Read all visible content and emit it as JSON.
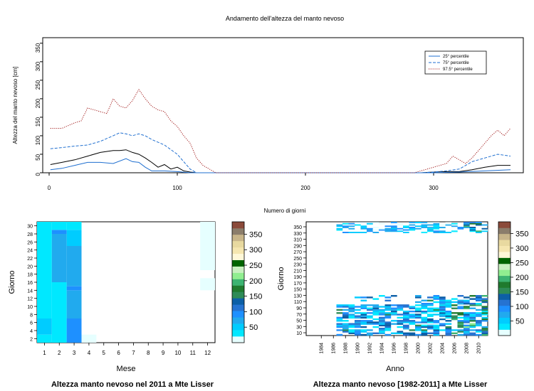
{
  "colors": {
    "median": "#000000",
    "p25": "#1f6fd0",
    "p75": "#1f6fd0",
    "p975": "#a01818",
    "scale": [
      "#e6ffff",
      "#00e8ff",
      "#00ccff",
      "#21aaee",
      "#1e90ff",
      "#2673d1",
      "#0d5fa6",
      "#2e8b57",
      "#1f7a2e",
      "#3cb371",
      "#90ee90",
      "#c8f0c0",
      "#006400",
      "#fff8d8",
      "#f5e6b0",
      "#e8d9a0",
      "#c8b58a",
      "#8b7d6b",
      "#8b4a3a"
    ]
  },
  "chart_data": [
    {
      "type": "line",
      "title": "Andamento dell'altezza del manto nevoso",
      "xlabel": "Numero di giorni",
      "ylabel": "Altezza del manto nevoso [cm]",
      "xlim": [
        -5,
        370
      ],
      "ylim": [
        0,
        365
      ],
      "xticks": [
        0,
        100,
        200,
        300
      ],
      "yticks": [
        0,
        50,
        100,
        150,
        200,
        250,
        300,
        350
      ],
      "legend_position": "top-right",
      "series": [
        {
          "name": "",
          "role": "median",
          "dash": "solid",
          "x": [
            1,
            10,
            20,
            30,
            40,
            50,
            55,
            60,
            65,
            70,
            75,
            80,
            85,
            90,
            95,
            100,
            105,
            110,
            115,
            290,
            300,
            310,
            320,
            330,
            340,
            350,
            360
          ],
          "y": [
            22,
            28,
            35,
            45,
            55,
            60,
            60,
            62,
            55,
            50,
            40,
            28,
            15,
            22,
            10,
            15,
            5,
            2,
            0,
            0,
            2,
            3,
            3,
            8,
            15,
            20,
            20
          ]
        },
        {
          "name": "25° percentile",
          "role": "p25",
          "dash": "solid",
          "x": [
            1,
            10,
            20,
            30,
            40,
            50,
            60,
            65,
            70,
            75,
            80,
            90,
            100,
            110,
            290,
            300,
            320,
            340,
            360
          ],
          "y": [
            8,
            12,
            20,
            28,
            28,
            25,
            38,
            30,
            28,
            15,
            5,
            5,
            3,
            0,
            0,
            0,
            2,
            5,
            8
          ]
        },
        {
          "name": "75° percentile",
          "role": "p75",
          "dash": "dashed",
          "x": [
            1,
            10,
            20,
            30,
            40,
            50,
            55,
            60,
            65,
            70,
            75,
            80,
            90,
            100,
            105,
            110,
            115,
            290,
            300,
            310,
            320,
            330,
            340,
            350,
            360
          ],
          "y": [
            65,
            68,
            72,
            75,
            85,
            100,
            108,
            105,
            100,
            105,
            100,
            90,
            75,
            50,
            30,
            10,
            0,
            0,
            2,
            5,
            10,
            30,
            40,
            50,
            45
          ]
        },
        {
          "name": "97.5° percentile",
          "role": "p975",
          "dash": "dotted",
          "x": [
            1,
            10,
            20,
            25,
            30,
            35,
            40,
            45,
            50,
            55,
            60,
            65,
            70,
            75,
            80,
            85,
            90,
            95,
            100,
            105,
            110,
            115,
            120,
            125,
            130,
            285,
            290,
            300,
            310,
            315,
            320,
            325,
            330,
            335,
            340,
            345,
            350,
            355,
            360
          ],
          "y": [
            120,
            120,
            135,
            140,
            175,
            170,
            165,
            160,
            200,
            180,
            175,
            195,
            225,
            200,
            180,
            170,
            165,
            140,
            125,
            100,
            80,
            40,
            20,
            10,
            0,
            0,
            5,
            15,
            25,
            45,
            35,
            25,
            40,
            60,
            80,
            100,
            115,
            100,
            120
          ]
        }
      ]
    },
    {
      "type": "heatmap",
      "title": "Altezza manto nevoso nel 2011 a Mte Lisser",
      "xlabel": "Mese",
      "ylabel": "Giorno",
      "xticks": [
        1,
        2,
        3,
        4,
        5,
        6,
        7,
        8,
        9,
        10,
        11,
        12
      ],
      "yticks": [
        2,
        4,
        6,
        8,
        10,
        12,
        14,
        16,
        18,
        20,
        22,
        24,
        26,
        28,
        30
      ],
      "ylim": [
        1,
        31
      ],
      "colorbar_ticks": [
        50,
        100,
        150,
        200,
        250,
        300,
        350
      ],
      "colorbar_range": [
        0,
        390
      ],
      "cells": [
        {
          "x": 1,
          "y": [
            1,
            3
          ],
          "v": 30
        },
        {
          "x": 1,
          "y": [
            3,
            7
          ],
          "v": 45
        },
        {
          "x": 1,
          "y": [
            7,
            31
          ],
          "v": 30
        },
        {
          "x": 2,
          "y": [
            1,
            16
          ],
          "v": 30
        },
        {
          "x": 2,
          "y": [
            16,
            28
          ],
          "v": 75
        },
        {
          "x": 2,
          "y": [
            28,
            29
          ],
          "v": 95
        },
        {
          "x": 2,
          "y": [
            29,
            31
          ],
          "v": 30
        },
        {
          "x": 3,
          "y": [
            1,
            7
          ],
          "v": 90
        },
        {
          "x": 3,
          "y": [
            7,
            14
          ],
          "v": 75
        },
        {
          "x": 3,
          "y": [
            14,
            15
          ],
          "v": 90
        },
        {
          "x": 3,
          "y": [
            15,
            25
          ],
          "v": 75
        },
        {
          "x": 3,
          "y": [
            25,
            29
          ],
          "v": 55
        },
        {
          "x": 3,
          "y": [
            29,
            31
          ],
          "v": 35
        },
        {
          "x": 4,
          "y": [
            1,
            3
          ],
          "v": 8
        },
        {
          "x": 12,
          "y": [
            14,
            17
          ],
          "v": 6
        },
        {
          "x": 12,
          "y": [
            19,
            31
          ],
          "v": 6
        }
      ]
    },
    {
      "type": "heatmap",
      "title": "Altezza manto nevoso [1982-2011] a Mte Lisser",
      "xlabel": "Anno",
      "ylabel": "Giorno",
      "xticks": [
        1984,
        1986,
        1988,
        1990,
        1992,
        1994,
        1996,
        1998,
        2000,
        2002,
        2004,
        2006,
        2008,
        2010
      ],
      "yticks": [
        10,
        30,
        50,
        70,
        90,
        110,
        130,
        150,
        170,
        190,
        210,
        230,
        250,
        270,
        290,
        310,
        330,
        350
      ],
      "xlim": [
        1982,
        2011
      ],
      "ylim": [
        1,
        366
      ],
      "colorbar_ticks": [
        50,
        100,
        150,
        200,
        250,
        300,
        350
      ],
      "colorbar_range": [
        0,
        390
      ]
    }
  ]
}
